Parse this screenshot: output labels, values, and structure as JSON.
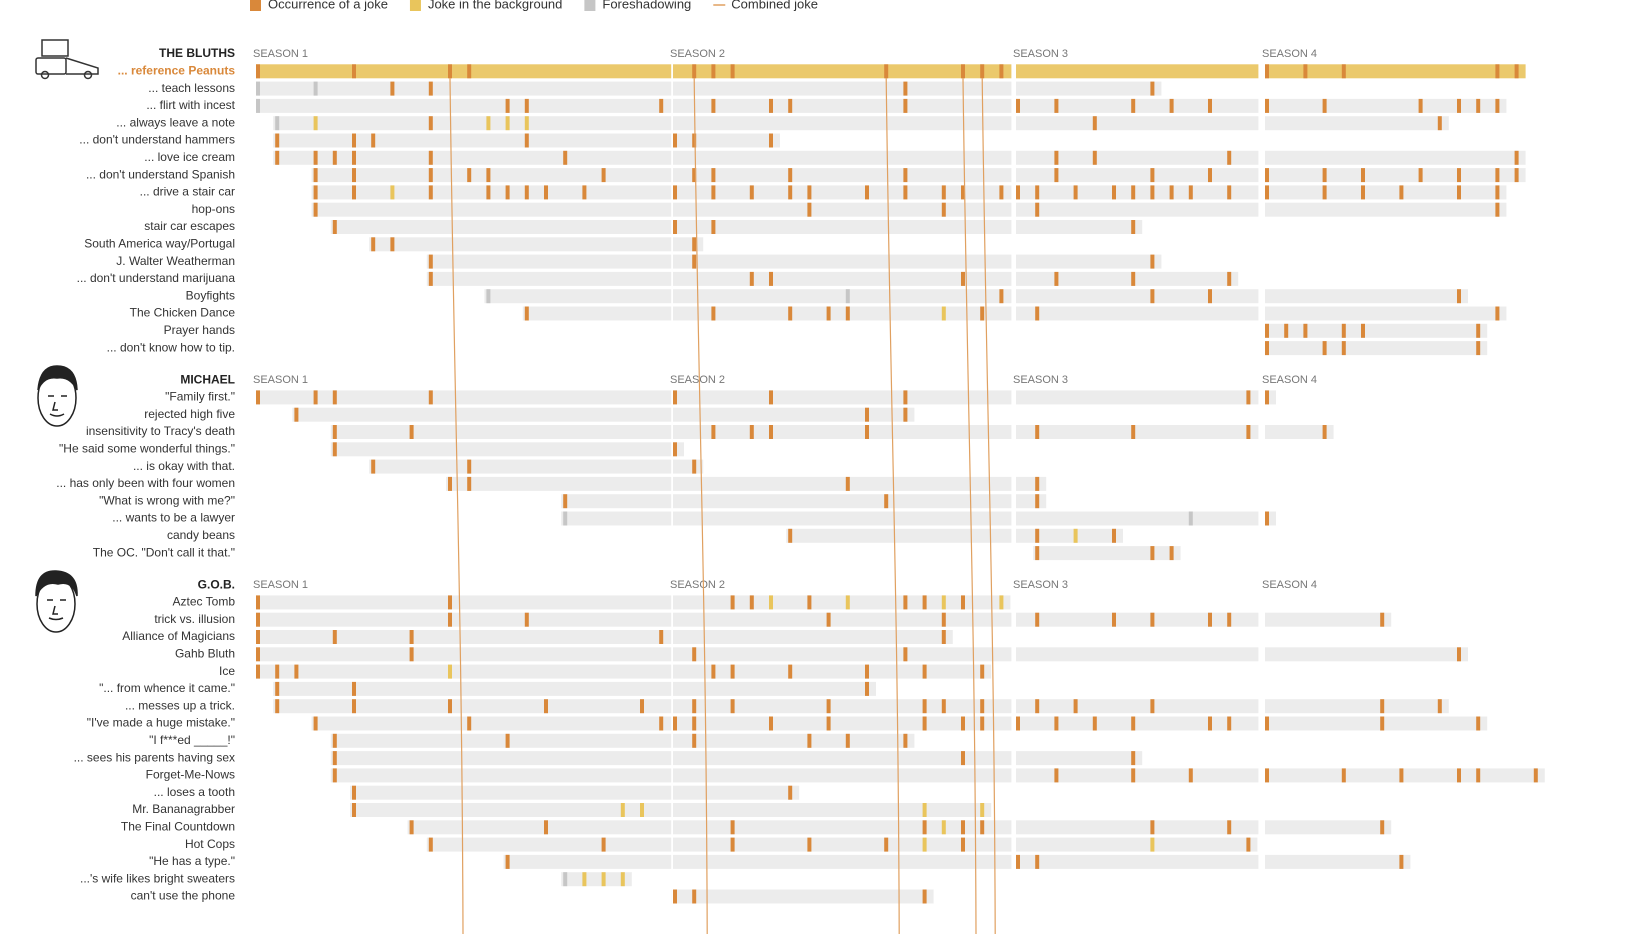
{
  "legend": [
    {
      "label": "Occurrence of a joke",
      "color": "#d9883a",
      "kind": "joke"
    },
    {
      "label": "Joke in the background",
      "color": "#e9c55c",
      "kind": "background"
    },
    {
      "label": "Foreshadowing",
      "color": "#c6c6c6",
      "kind": "foreshadow"
    },
    {
      "label": "Combined joke",
      "color": "#e0a060",
      "kind": "combined"
    }
  ],
  "seasons": [
    {
      "label": "SEASON 1",
      "episodes": 22
    },
    {
      "label": "SEASON 2",
      "episodes": 18
    },
    {
      "label": "SEASON 3",
      "episodes": 13
    },
    {
      "label": "SEASON 4",
      "episodes": 15
    }
  ],
  "groups": [
    {
      "name": "THE BLUTHS",
      "rows": [
        {
          "label": "... reference Peanuts",
          "highlight": true,
          "jokes": [
            1,
            6,
            11,
            12,
            24,
            25,
            26,
            34,
            38,
            39,
            40,
            54,
            56,
            58,
            66,
            67
          ],
          "combined": [
            11,
            24,
            34,
            38,
            39
          ]
        },
        {
          "label": "... teach lessons",
          "jokes": [
            8,
            10,
            35,
            48
          ],
          "foreshadow": [
            1,
            4
          ]
        },
        {
          "label": "... flirt with incest",
          "jokes": [
            14,
            15,
            22,
            25,
            28,
            29,
            35,
            41,
            43,
            47,
            49,
            51,
            54,
            57,
            62,
            64,
            65,
            66
          ],
          "foreshadow": [
            1
          ]
        },
        {
          "label": "... always leave a note",
          "jokes": [
            10,
            45,
            63
          ],
          "background": [
            4,
            13,
            14,
            15
          ],
          "foreshadow": [
            2
          ]
        },
        {
          "label": "... don't understand hammers",
          "jokes": [
            2,
            6,
            7,
            15,
            23,
            24,
            28
          ]
        },
        {
          "label": "... love ice cream",
          "jokes": [
            2,
            4,
            5,
            6,
            10,
            17,
            43,
            45,
            52,
            67
          ]
        },
        {
          "label": "... don't understand Spanish",
          "jokes": [
            4,
            6,
            10,
            12,
            13,
            19,
            24,
            25,
            29,
            35,
            43,
            48,
            51,
            54,
            57,
            59,
            62,
            64,
            66,
            67
          ]
        },
        {
          "label": "... drive a stair car",
          "jokes": [
            4,
            6,
            10,
            13,
            14,
            15,
            16,
            18,
            23,
            25,
            27,
            29,
            30,
            33,
            35,
            37,
            38,
            40,
            41,
            42,
            44,
            46,
            47,
            48,
            49,
            50,
            52,
            54,
            57,
            59,
            61,
            64,
            66
          ],
          "background": [
            8
          ]
        },
        {
          "label": "hop-ons",
          "jokes": [
            4,
            30,
            37,
            42,
            66
          ]
        },
        {
          "label": "stair car escapes",
          "jokes": [
            5,
            23,
            25,
            47
          ]
        },
        {
          "label": "South America way/Portugal",
          "jokes": [
            7,
            8,
            24
          ]
        },
        {
          "label": "J. Walter Weatherman",
          "jokes": [
            10,
            24,
            48
          ]
        },
        {
          "label": "... don't understand marijuana",
          "jokes": [
            10,
            27,
            28,
            38,
            43,
            47,
            52
          ]
        },
        {
          "label": "Boyfights",
          "jokes": [
            40,
            48,
            51,
            64
          ],
          "foreshadow": [
            13,
            32
          ]
        },
        {
          "label": "The Chicken Dance",
          "jokes": [
            15,
            25,
            29,
            31,
            32,
            39,
            42,
            66
          ],
          "background": [
            37
          ]
        },
        {
          "label": "Prayer hands",
          "jokes": [
            54,
            55,
            56,
            58,
            59,
            65
          ]
        },
        {
          "label": "... don't know how to tip.",
          "jokes": [
            54,
            57,
            58,
            65
          ]
        }
      ]
    },
    {
      "name": "MICHAEL",
      "rows": [
        {
          "label": "\"Family first.\"",
          "jokes": [
            1,
            4,
            5,
            10,
            23,
            28,
            35,
            53,
            54
          ]
        },
        {
          "label": "rejected high five",
          "jokes": [
            3,
            33,
            35
          ]
        },
        {
          "label": "insensitivity to Tracy's death",
          "jokes": [
            5,
            9,
            25,
            27,
            28,
            33,
            42,
            47,
            53,
            57
          ]
        },
        {
          "label": "\"He said some wonderful things.\"",
          "jokes": [
            5,
            23
          ]
        },
        {
          "label": "... is okay with that.",
          "jokes": [
            7,
            12,
            24
          ]
        },
        {
          "label": "... has only been with four women",
          "jokes": [
            11,
            12,
            32,
            42
          ]
        },
        {
          "label": "\"What is wrong with me?\"",
          "jokes": [
            17,
            34,
            42
          ]
        },
        {
          "label": "... wants to be a lawyer",
          "jokes": [
            54
          ],
          "foreshadow": [
            17,
            50
          ]
        },
        {
          "label": "candy beans",
          "jokes": [
            29,
            42,
            46
          ],
          "background": [
            44
          ]
        },
        {
          "label": "The OC. \"Don't call it that.\"",
          "jokes": [
            42,
            48,
            49
          ]
        }
      ]
    },
    {
      "name": "G.O.B.",
      "rows": [
        {
          "label": "Aztec Tomb",
          "jokes": [
            1,
            11,
            26,
            27,
            30,
            35,
            36,
            38
          ],
          "background": [
            28,
            32,
            37,
            40
          ]
        },
        {
          "label": "trick vs. illusion",
          "jokes": [
            1,
            11,
            15,
            31,
            37,
            42,
            46,
            48,
            51,
            52,
            60
          ]
        },
        {
          "label": "Alliance of Magicians",
          "jokes": [
            1,
            5,
            9,
            22,
            37
          ]
        },
        {
          "label": "Gahb Bluth",
          "jokes": [
            1,
            9,
            24,
            35,
            64
          ]
        },
        {
          "label": "Ice",
          "jokes": [
            1,
            2,
            3,
            25,
            26,
            29,
            33,
            36,
            39
          ],
          "background": [
            11
          ]
        },
        {
          "label": "\"... from whence it came.\"",
          "jokes": [
            2,
            6,
            33
          ]
        },
        {
          "label": "... messes up a trick.",
          "jokes": [
            2,
            6,
            11,
            16,
            21,
            24,
            26,
            31,
            36,
            37,
            39,
            42,
            44,
            48,
            60,
            63
          ]
        },
        {
          "label": "\"I've made a huge mistake.\"",
          "jokes": [
            4,
            12,
            22,
            23,
            24,
            28,
            31,
            36,
            38,
            39,
            41,
            43,
            45,
            47,
            51,
            52,
            54,
            60,
            65
          ]
        },
        {
          "label": "\"I f***ed _____!\"",
          "jokes": [
            5,
            14,
            24,
            30,
            32,
            35
          ]
        },
        {
          "label": "... sees his parents having sex",
          "jokes": [
            5,
            38,
            47
          ]
        },
        {
          "label": "Forget-Me-Nows",
          "jokes": [
            5,
            43,
            47,
            50,
            54,
            58,
            61,
            64,
            65,
            68
          ]
        },
        {
          "label": "... loses a tooth",
          "jokes": [
            6,
            29
          ]
        },
        {
          "label": "Mr. Bananagrabber",
          "jokes": [
            6
          ],
          "background": [
            20,
            21,
            36,
            39
          ]
        },
        {
          "label": "The Final Countdown",
          "jokes": [
            9,
            16,
            26,
            36,
            38,
            39,
            48,
            52,
            60
          ],
          "background": [
            37
          ]
        },
        {
          "label": "Hot Cops",
          "jokes": [
            10,
            19,
            26,
            30,
            34,
            38,
            53
          ],
          "background": [
            36,
            48
          ]
        },
        {
          "label": "\"He has a type.\"",
          "jokes": [
            14,
            41,
            42,
            61
          ]
        },
        {
          "label": "...'s wife likes bright sweaters",
          "background": [
            18,
            19,
            20
          ],
          "foreshadow": [
            17
          ]
        },
        {
          "label": "can't use the phone",
          "jokes": [
            23,
            24,
            36
          ]
        }
      ]
    }
  ]
}
